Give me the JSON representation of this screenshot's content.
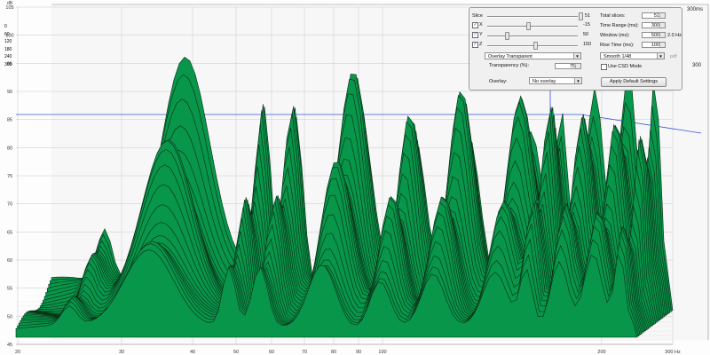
{
  "axes": {
    "y_unit": "dB",
    "y_ticks": [
      "105",
      "100",
      "95",
      "90",
      "85",
      "80",
      "75",
      "70",
      "65",
      "60",
      "55",
      "50",
      "45"
    ],
    "x_ticks": [
      "20",
      "30",
      "40",
      "50",
      "60",
      "70",
      "80",
      "90",
      "100",
      "200",
      "300 Hz"
    ],
    "time_ticks": [
      "0",
      "60",
      "120",
      "180",
      "240",
      "300"
    ],
    "time_right_label": "300ms",
    "back_right_label": "300"
  },
  "controls": {
    "slice": {
      "label": "Slice",
      "value": "51"
    },
    "x": {
      "label": "X",
      "value": "-15",
      "checked": true
    },
    "y": {
      "label": "Y",
      "value": "50",
      "checked": true
    },
    "z": {
      "label": "Z",
      "value": "150",
      "checked": true
    },
    "total_slices": {
      "label": "Total slices:",
      "value": "51"
    },
    "time_range": {
      "label": "Time Range (ms):",
      "value": "300"
    },
    "window": {
      "label": "Window (ms):",
      "value": "500",
      "suffix": "2.0 Hz"
    },
    "rise_time": {
      "label": "Rise Time (ms):",
      "value": "100"
    },
    "overlay_mode": {
      "value": "Overlay Transparent"
    },
    "smoothing": {
      "value": "Smooth 1/48"
    },
    "transparency": {
      "label": "Transparency (%):",
      "value": "75"
    },
    "use_csd": {
      "label": "Use CSD Mode",
      "checked": false
    },
    "overlay": {
      "label": "Overlay:",
      "value": "No overlay"
    },
    "apply_defaults": {
      "label": "Apply Default Settings"
    },
    "pdf_label": "pdf"
  },
  "colors": {
    "fill": "#07964a",
    "outline": "#0a2a14",
    "grid": "#c8c8c8",
    "cursor": "#3355dd"
  }
}
